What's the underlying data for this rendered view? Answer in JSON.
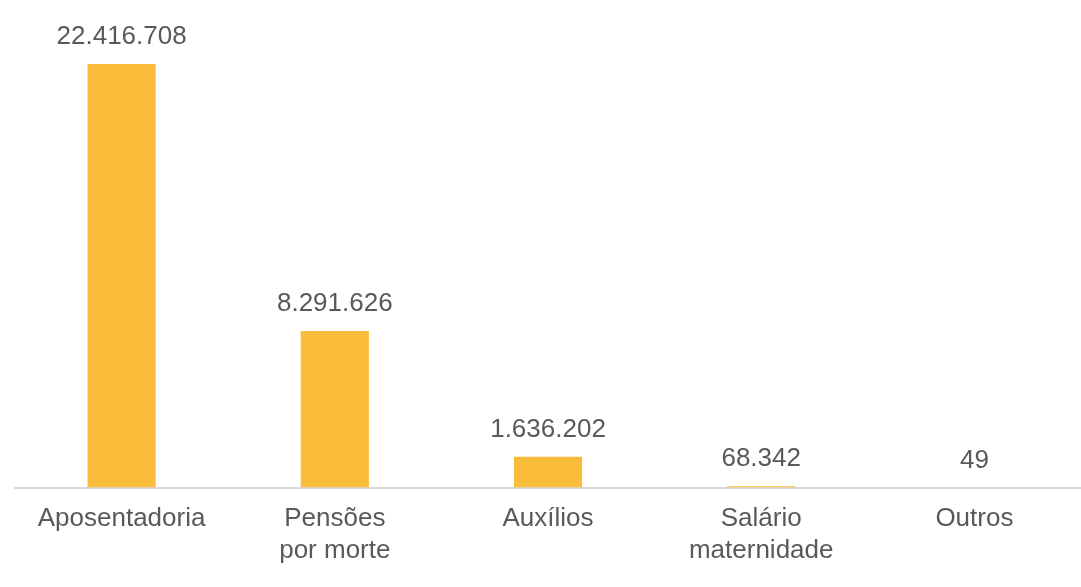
{
  "chart_data": {
    "type": "bar",
    "categories": [
      "Aposentadoria",
      "Pensões por morte",
      "Auxílios",
      "Salário maternidade",
      "Outros"
    ],
    "values": [
      22416708,
      8291626,
      1636202,
      68342,
      49
    ],
    "value_labels": [
      "22.416.708",
      "8.291.626",
      "1.636.202",
      "68.342",
      "49"
    ],
    "color": "#f9bd3b",
    "ylim": [
      0,
      22416708
    ],
    "grid": false,
    "legend": false
  }
}
